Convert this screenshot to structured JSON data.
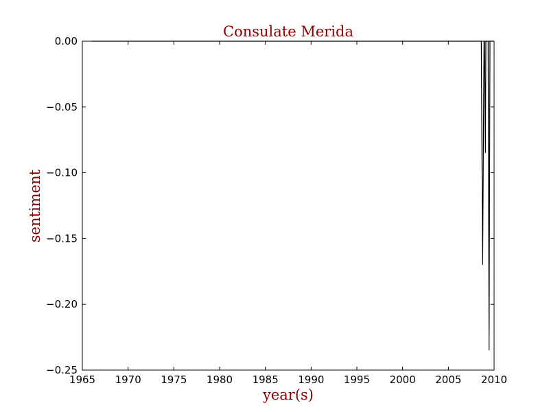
{
  "chart_data": {
    "type": "line",
    "title": "Consulate Merida",
    "xlabel": "year(s)",
    "ylabel": "sentiment",
    "xlim": [
      1965,
      2010
    ],
    "ylim": [
      -0.25,
      0.0
    ],
    "xticks": [
      1965,
      1970,
      1975,
      1980,
      1985,
      1990,
      1995,
      2000,
      2005,
      2010
    ],
    "yticks": [
      0.0,
      -0.05,
      -0.1,
      -0.15,
      -0.2,
      -0.25
    ],
    "ytick_labels": [
      "0.00",
      "−0.05",
      "−0.10",
      "−0.15",
      "−0.20",
      "−0.25"
    ],
    "grid": false,
    "label_color": "#8b0000",
    "line_color": "#000000",
    "series": [
      {
        "x": [
          1966.0,
          2008.6,
          2008.75,
          2008.9,
          2008.95,
          2009.05,
          2009.1,
          2009.2,
          2009.35,
          2009.45,
          2009.55,
          2009.65,
          2009.75,
          2009.85,
          2010.0
        ],
        "y": [
          0.0,
          0.0,
          -0.17,
          0.0,
          0.0,
          -0.085,
          0.0,
          0.0,
          0.0,
          -0.235,
          0.0,
          0.0,
          0.0,
          0.0,
          0.0
        ]
      }
    ]
  }
}
